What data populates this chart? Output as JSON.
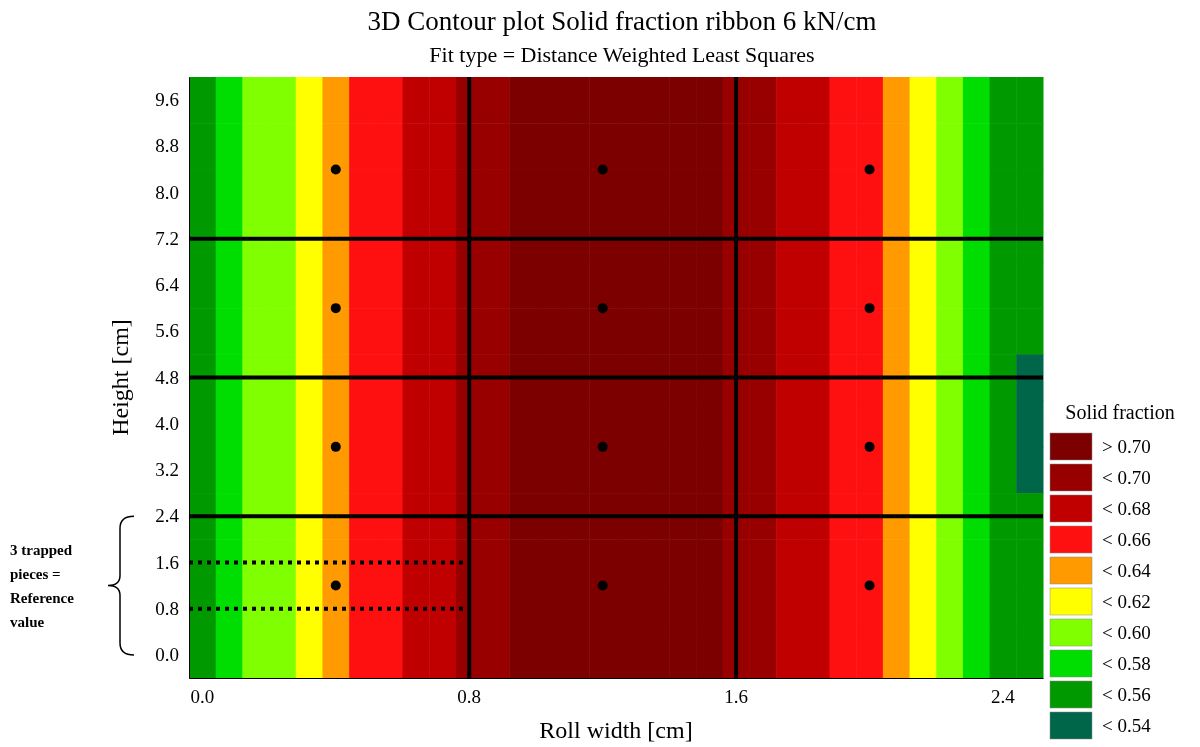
{
  "chart_data": {
    "type": "heatmap",
    "title": "3D Contour plot Solid fraction ribbon 6 kN/cm",
    "subtitle": "Fit type = Distance Weighted Least Squares",
    "xlabel": "Roll width [cm]",
    "ylabel": "Height [cm]",
    "legend_title": "Solid fraction",
    "categories": [
      "0.0",
      null,
      null,
      null,
      null,
      null,
      null,
      null,
      null,
      null,
      "0.8",
      null,
      null,
      null,
      null,
      null,
      null,
      null,
      null,
      null,
      "1.6",
      null,
      null,
      null,
      null,
      null,
      null,
      null,
      null,
      null,
      "2.4",
      null
    ],
    "y_categories": [
      "9.6",
      "8.8",
      "8.0",
      "7.2",
      "6.4",
      "5.6",
      "4.8",
      "4.0",
      "3.2",
      "2.4",
      "1.6",
      "0.8",
      "0.0"
    ],
    "cticks": [
      {
        "value": 0.71,
        "label": "> 0.70"
      },
      {
        "value": 0.69,
        "label": "< 0.70"
      },
      {
        "value": 0.67,
        "label": "< 0.68"
      },
      {
        "value": 0.65,
        "label": "< 0.66"
      },
      {
        "value": 0.63,
        "label": "< 0.64"
      },
      {
        "value": 0.61,
        "label": "< 0.62"
      },
      {
        "value": 0.59,
        "label": "< 0.60"
      },
      {
        "value": 0.57,
        "label": "< 0.58"
      },
      {
        "value": 0.55,
        "label": "< 0.56"
      },
      {
        "value": 0.53,
        "label": "< 0.54"
      }
    ],
    "colors": [
      "#7d0000",
      "#980000",
      "#c00000",
      "#ff1010",
      "#ff9a00",
      "#ffff00",
      "#80ff00",
      "#00dd00",
      "#009a00",
      "#00664a"
    ],
    "cells": [
      [
        0.55,
        0.57,
        0.59,
        0.59,
        0.61,
        0.63,
        0.65,
        0.65,
        0.67,
        0.67,
        0.69,
        0.69,
        0.71,
        0.71,
        0.71,
        0.71,
        0.71,
        0.71,
        0.71,
        0.71,
        0.69,
        0.69,
        0.67,
        0.67,
        0.65,
        0.65,
        0.63,
        0.61,
        0.59,
        0.57,
        0.55,
        0.55
      ],
      [
        0.55,
        0.57,
        0.59,
        0.59,
        0.61,
        0.63,
        0.65,
        0.65,
        0.67,
        0.67,
        0.69,
        0.69,
        0.71,
        0.71,
        0.71,
        0.71,
        0.71,
        0.71,
        0.71,
        0.71,
        0.69,
        0.69,
        0.67,
        0.67,
        0.65,
        0.65,
        0.63,
        0.61,
        0.59,
        0.57,
        0.55,
        0.55
      ],
      [
        0.55,
        0.57,
        0.59,
        0.59,
        0.61,
        0.63,
        0.65,
        0.65,
        0.67,
        0.67,
        0.69,
        0.69,
        0.71,
        0.71,
        0.71,
        0.71,
        0.71,
        0.71,
        0.71,
        0.71,
        0.69,
        0.69,
        0.67,
        0.67,
        0.65,
        0.65,
        0.63,
        0.61,
        0.59,
        0.57,
        0.55,
        0.55
      ],
      [
        0.55,
        0.57,
        0.59,
        0.59,
        0.61,
        0.63,
        0.65,
        0.65,
        0.67,
        0.67,
        0.69,
        0.69,
        0.71,
        0.71,
        0.71,
        0.71,
        0.71,
        0.71,
        0.71,
        0.71,
        0.69,
        0.69,
        0.67,
        0.67,
        0.65,
        0.65,
        0.63,
        0.61,
        0.59,
        0.57,
        0.55,
        0.55
      ],
      [
        0.55,
        0.57,
        0.59,
        0.59,
        0.61,
        0.63,
        0.65,
        0.65,
        0.67,
        0.67,
        0.69,
        0.69,
        0.71,
        0.71,
        0.71,
        0.71,
        0.71,
        0.71,
        0.71,
        0.71,
        0.69,
        0.69,
        0.67,
        0.67,
        0.65,
        0.65,
        0.63,
        0.61,
        0.59,
        0.57,
        0.55,
        0.55
      ],
      [
        0.55,
        0.57,
        0.59,
        0.59,
        0.61,
        0.63,
        0.65,
        0.65,
        0.67,
        0.67,
        0.69,
        0.69,
        0.71,
        0.71,
        0.71,
        0.71,
        0.71,
        0.71,
        0.71,
        0.71,
        0.69,
        0.69,
        0.67,
        0.67,
        0.65,
        0.65,
        0.63,
        0.61,
        0.59,
        0.57,
        0.55,
        0.55
      ],
      [
        0.55,
        0.57,
        0.59,
        0.59,
        0.61,
        0.63,
        0.65,
        0.65,
        0.67,
        0.67,
        0.69,
        0.69,
        0.71,
        0.71,
        0.71,
        0.71,
        0.71,
        0.71,
        0.71,
        0.71,
        0.69,
        0.69,
        0.67,
        0.67,
        0.65,
        0.65,
        0.63,
        0.61,
        0.59,
        0.57,
        0.55,
        0.53
      ],
      [
        0.55,
        0.57,
        0.59,
        0.59,
        0.61,
        0.63,
        0.65,
        0.65,
        0.67,
        0.67,
        0.69,
        0.69,
        0.71,
        0.71,
        0.71,
        0.71,
        0.71,
        0.71,
        0.71,
        0.71,
        0.69,
        0.69,
        0.67,
        0.67,
        0.65,
        0.65,
        0.63,
        0.61,
        0.59,
        0.57,
        0.55,
        0.53
      ],
      [
        0.55,
        0.57,
        0.59,
        0.59,
        0.61,
        0.63,
        0.65,
        0.65,
        0.67,
        0.67,
        0.69,
        0.69,
        0.71,
        0.71,
        0.71,
        0.71,
        0.71,
        0.71,
        0.71,
        0.71,
        0.69,
        0.69,
        0.67,
        0.67,
        0.65,
        0.65,
        0.63,
        0.61,
        0.59,
        0.57,
        0.55,
        0.53
      ],
      [
        0.55,
        0.57,
        0.59,
        0.59,
        0.61,
        0.63,
        0.65,
        0.65,
        0.67,
        0.67,
        0.69,
        0.69,
        0.71,
        0.71,
        0.71,
        0.71,
        0.71,
        0.71,
        0.71,
        0.71,
        0.69,
        0.69,
        0.67,
        0.67,
        0.65,
        0.65,
        0.63,
        0.61,
        0.59,
        0.57,
        0.55,
        0.55
      ],
      [
        0.55,
        0.57,
        0.59,
        0.59,
        0.61,
        0.63,
        0.65,
        0.65,
        0.67,
        0.67,
        0.69,
        0.69,
        0.71,
        0.71,
        0.71,
        0.71,
        0.71,
        0.71,
        0.71,
        0.71,
        0.69,
        0.69,
        0.67,
        0.67,
        0.65,
        0.65,
        0.63,
        0.61,
        0.59,
        0.57,
        0.55,
        0.55
      ],
      [
        0.55,
        0.57,
        0.59,
        0.59,
        0.61,
        0.63,
        0.65,
        0.65,
        0.67,
        0.67,
        0.69,
        0.69,
        0.71,
        0.71,
        0.71,
        0.71,
        0.71,
        0.71,
        0.71,
        0.71,
        0.69,
        0.69,
        0.67,
        0.67,
        0.65,
        0.65,
        0.63,
        0.61,
        0.59,
        0.57,
        0.55,
        0.55
      ],
      [
        0.55,
        0.57,
        0.59,
        0.59,
        0.61,
        0.63,
        0.65,
        0.65,
        0.67,
        0.67,
        0.69,
        0.69,
        0.71,
        0.71,
        0.71,
        0.71,
        0.71,
        0.71,
        0.71,
        0.71,
        0.69,
        0.69,
        0.67,
        0.67,
        0.65,
        0.65,
        0.63,
        0.61,
        0.59,
        0.57,
        0.55,
        0.55
      ]
    ],
    "ref_lines": [
      {
        "axis": "x",
        "value": "0.8",
        "color": "#000000"
      },
      {
        "axis": "x",
        "value": "1.6",
        "color": "#000000"
      },
      {
        "axis": "y",
        "value": "2.4",
        "color": "#000000"
      },
      {
        "axis": "y",
        "value": "4.8",
        "color": "#000000"
      },
      {
        "axis": "y",
        "value": "7.2",
        "color": "#000000"
      },
      {
        "axis": "y",
        "value": "1.6",
        "color": "#000000",
        "line_style": "dotted"
      },
      {
        "axis": "y",
        "value": "0.8",
        "color": "#000000",
        "line_style": "dotted"
      }
    ],
    "annotations": [
      "3 trapped pieces = Reference value"
    ]
  }
}
